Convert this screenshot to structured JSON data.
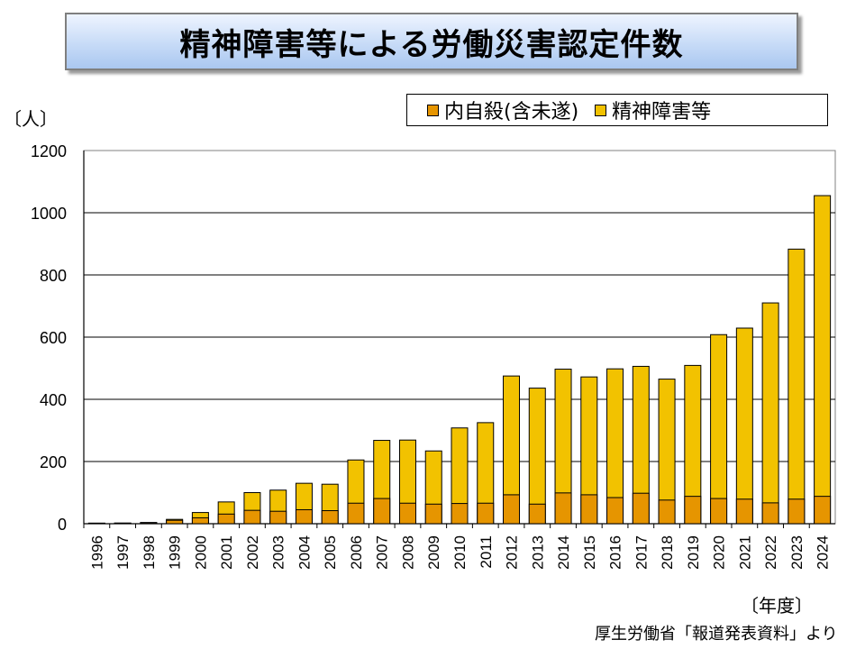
{
  "title": "精神障害等による労働災害認定件数",
  "y_unit": "〔人〕",
  "x_unit": "〔年度〕",
  "source": "厚生労働省「報道発表資料」より",
  "colors": {
    "suicide": "#e69500",
    "mental": "#f2c200",
    "bar_border": "#000000",
    "grid": "#000000"
  },
  "chart_data": {
    "type": "bar",
    "stacked": true,
    "title": "精神障害等による労働災害認定件数",
    "xlabel": "〔年度〕",
    "ylabel": "〔人〕",
    "ylim": [
      0,
      1200
    ],
    "yticks": [
      0,
      200,
      400,
      600,
      800,
      1000,
      1200
    ],
    "legend_position": "top-right",
    "categories": [
      "1996",
      "1997",
      "1998",
      "1999",
      "2000",
      "2001",
      "2002",
      "2003",
      "2004",
      "2005",
      "2006",
      "2007",
      "2008",
      "2009",
      "2010",
      "2011",
      "2012",
      "2013",
      "2014",
      "2015",
      "2016",
      "2017",
      "2018",
      "2019",
      "2020",
      "2021",
      "2022",
      "2023",
      "2024"
    ],
    "series": [
      {
        "name": "内自殺(含未遂)",
        "values": [
          1,
          2,
          3,
          11,
          19,
          31,
          43,
          40,
          45,
          42,
          66,
          81,
          66,
          63,
          65,
          66,
          93,
          63,
          99,
          93,
          84,
          98,
          76,
          88,
          81,
          79,
          67,
          79,
          88
        ]
      },
      {
        "name": "精神障害等",
        "values": [
          2,
          2,
          4,
          14,
          36,
          70,
          100,
          108,
          130,
          127,
          205,
          268,
          269,
          234,
          308,
          325,
          475,
          436,
          497,
          472,
          498,
          506,
          465,
          509,
          608,
          629,
          710,
          883,
          1055
        ]
      }
    ],
    "series_note": "精神障害等 values are totals; 内自殺(含未遂) is the subset drawn at the bottom of each bar"
  }
}
